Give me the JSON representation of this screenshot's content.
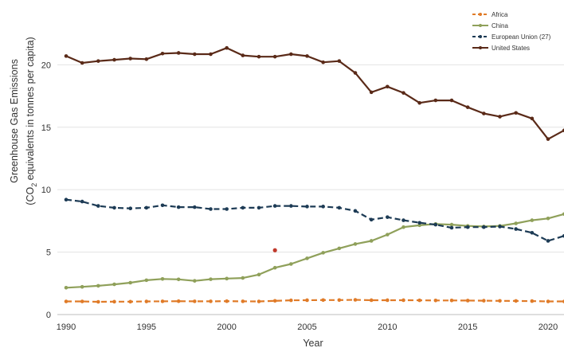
{
  "chart_data": {
    "type": "line",
    "xlabel": "Year",
    "ylabel_line1": "Greenhouse Gas Emissions",
    "ylabel_line2_pre": "(CO",
    "ylabel_line2_sub": "2",
    "ylabel_line2_post": " equivalents in tonnes per capita)",
    "xlim": [
      1990,
      2021
    ],
    "ylim": [
      0,
      22
    ],
    "x_ticks": [
      1990,
      1995,
      2000,
      2005,
      2010,
      2015,
      2020
    ],
    "y_ticks": [
      0,
      5,
      10,
      15,
      20
    ],
    "grid": "horizontal",
    "legend_position": "top-right",
    "x": [
      1990,
      1991,
      1992,
      1993,
      1994,
      1995,
      1996,
      1997,
      1998,
      1999,
      2000,
      2001,
      2002,
      2003,
      2004,
      2005,
      2006,
      2007,
      2008,
      2009,
      2010,
      2011,
      2012,
      2013,
      2014,
      2015,
      2016,
      2017,
      2018,
      2019,
      2020,
      2021
    ],
    "series": [
      {
        "name": "Africa",
        "color": "#e07b28",
        "line_style": "dashed",
        "values": [
          1.05,
          1.05,
          1.02,
          1.03,
          1.03,
          1.05,
          1.06,
          1.07,
          1.06,
          1.06,
          1.07,
          1.06,
          1.05,
          1.1,
          1.14,
          1.15,
          1.16,
          1.16,
          1.18,
          1.15,
          1.15,
          1.15,
          1.14,
          1.13,
          1.13,
          1.12,
          1.11,
          1.1,
          1.09,
          1.08,
          1.05,
          1.05
        ]
      },
      {
        "name": "China",
        "color": "#8fa05a",
        "line_style": "solid",
        "values": [
          2.15,
          2.22,
          2.3,
          2.42,
          2.55,
          2.75,
          2.85,
          2.82,
          2.7,
          2.83,
          2.88,
          2.93,
          3.2,
          3.75,
          4.05,
          4.5,
          4.95,
          5.3,
          5.65,
          5.9,
          6.4,
          7.0,
          7.15,
          7.25,
          7.2,
          7.1,
          7.05,
          7.1,
          7.3,
          7.55,
          7.7,
          8.05
        ]
      },
      {
        "name": "European Union (27)",
        "color": "#1d3b55",
        "line_style": "dashed",
        "values": [
          9.2,
          9.05,
          8.7,
          8.55,
          8.5,
          8.55,
          8.75,
          8.6,
          8.6,
          8.45,
          8.45,
          8.55,
          8.55,
          8.7,
          8.7,
          8.65,
          8.65,
          8.55,
          8.3,
          7.6,
          7.8,
          7.55,
          7.35,
          7.2,
          6.95,
          7.0,
          7.0,
          7.05,
          6.85,
          6.55,
          5.9,
          6.3
        ]
      },
      {
        "name": "United States",
        "color": "#5a2a18",
        "line_style": "solid",
        "values": [
          20.7,
          20.15,
          20.3,
          20.4,
          20.5,
          20.45,
          20.9,
          20.95,
          20.85,
          20.85,
          21.35,
          20.75,
          20.65,
          20.65,
          20.85,
          20.7,
          20.2,
          20.3,
          19.35,
          17.8,
          18.25,
          17.75,
          16.95,
          17.15,
          17.15,
          16.6,
          16.1,
          15.85,
          16.15,
          15.7,
          14.05,
          14.75
        ]
      }
    ],
    "annotations": [
      {
        "x": 2003,
        "y": 5.15,
        "color": "#c0392b"
      }
    ]
  }
}
